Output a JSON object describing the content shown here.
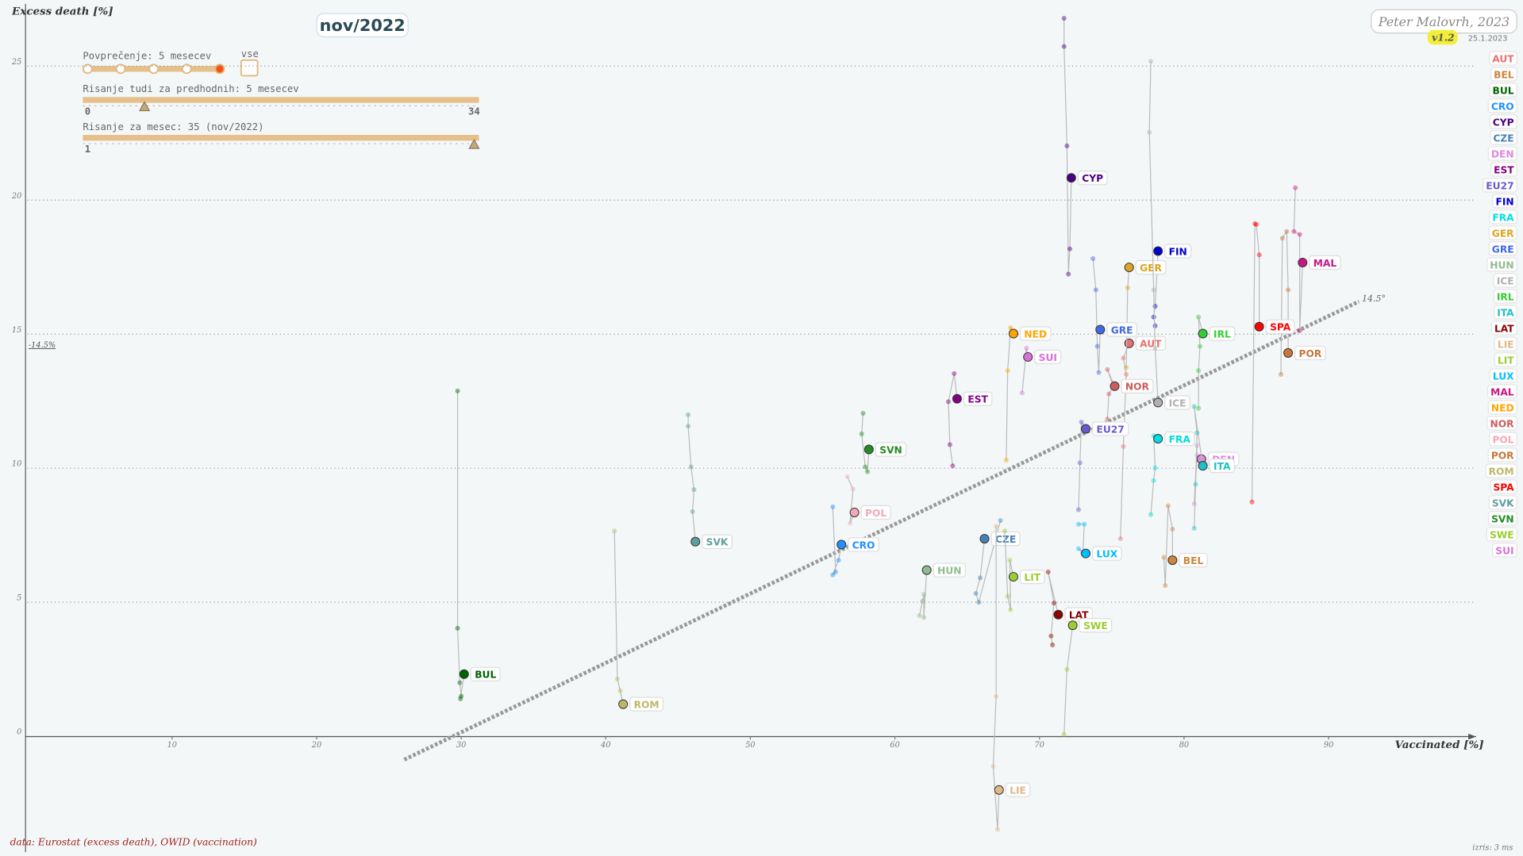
{
  "chart_data": {
    "type": "scatter",
    "title": "nov/2022",
    "x_label": "Vaccinated [%]",
    "y_label": "Excess death [%]",
    "xlim": [
      0,
      100.2
    ],
    "ylim": [
      -4.5,
      27.5
    ],
    "xticks": [
      10,
      20,
      30,
      40,
      50,
      60,
      70,
      80,
      90
    ],
    "yticks": [
      0,
      5,
      10,
      15,
      20,
      25
    ],
    "grid": true,
    "trend_line": {
      "x": [
        26.06,
        92.1
      ],
      "y": [
        -0.87,
        16.22
      ],
      "label": "14.5°",
      "left_label": "-14.5%"
    },
    "series": [
      {
        "name": "AUT",
        "color": "#e87070",
        "x": [
          75.6,
          75.8,
          76.0,
          75.8,
          76.2
        ],
        "y": [
          7.37,
          10.81,
          13.5,
          14.11,
          14.66
        ]
      },
      {
        "name": "BEL",
        "color": "#cd853f",
        "x": [
          78.6,
          78.7,
          78.9,
          79.2,
          79.2
        ],
        "y": [
          6.68,
          5.62,
          8.6,
          7.73,
          6.57
        ]
      },
      {
        "name": "BUL",
        "color": "#006400",
        "x": [
          29.75,
          29.75,
          29.9,
          30.0,
          29.95,
          30.2
        ],
        "y": [
          12.88,
          4.03,
          2.0,
          1.5,
          1.4,
          2.32
        ]
      },
      {
        "name": "CRO",
        "color": "#1e90ff",
        "x": [
          55.7,
          55.9,
          55.7,
          56.1,
          56.3
        ],
        "y": [
          8.56,
          6.13,
          6.02,
          6.57,
          7.15
        ]
      },
      {
        "name": "CYP",
        "color": "#4b0082",
        "x": [
          71.7,
          71.7,
          71.9,
          72.0,
          72.1,
          72.2
        ],
        "y": [
          26.78,
          25.73,
          22.02,
          17.24,
          18.18,
          20.83
        ]
      },
      {
        "name": "CZE",
        "color": "#4682b4",
        "x": [
          67.3,
          65.8,
          65.6,
          65.9,
          66.2
        ],
        "y": [
          8.05,
          5.0,
          5.33,
          5.91,
          7.37
        ]
      },
      {
        "name": "DEN",
        "color": "#dd88dd",
        "x": [
          80.9,
          80.7,
          80.9,
          81.2
        ],
        "y": [
          10.85,
          8.67,
          10.49,
          10.34
        ]
      },
      {
        "name": "EST",
        "color": "#800080",
        "x": [
          64.0,
          63.8,
          63.7,
          64.1,
          64.3
        ],
        "y": [
          10.09,
          10.88,
          12.48,
          13.53,
          12.59
        ]
      },
      {
        "name": "EU27",
        "color": "#6a5acd",
        "x": [
          72.7,
          72.8,
          72.9,
          73.2
        ],
        "y": [
          8.45,
          10.2,
          11.72,
          11.47
        ]
      },
      {
        "name": "FIN",
        "color": "#0000cd",
        "x": [
          78.0,
          77.9,
          78.0,
          78.2
        ],
        "y": [
          15.31,
          15.64,
          16.04,
          18.1
        ]
      },
      {
        "name": "FRA",
        "color": "#00dde0",
        "x": [
          77.7,
          77.9,
          78.0,
          77.9,
          78.2
        ],
        "y": [
          8.27,
          9.54,
          10.01,
          11.21,
          11.1
        ]
      },
      {
        "name": "GER",
        "color": "#daa520",
        "x": [
          76.0,
          76.1,
          76.2
        ],
        "y": [
          13.75,
          16.73,
          17.49
        ]
      },
      {
        "name": "GRE",
        "color": "#4169e1",
        "x": [
          73.7,
          73.9,
          74.0,
          74.1,
          74.2
        ],
        "y": [
          17.82,
          16.65,
          14.55,
          13.57,
          15.17
        ]
      },
      {
        "name": "HUN",
        "color": "#8fbc8f",
        "x": [
          61.7,
          61.9,
          62.0,
          62.0,
          62.2
        ],
        "y": [
          4.5,
          5.04,
          5.3,
          4.43,
          6.2
        ]
      },
      {
        "name": "ICE",
        "color": "#b0b0b0",
        "x": [
          77.7,
          77.6,
          77.9,
          78.0,
          78.2
        ],
        "y": [
          25.18,
          22.53,
          16.65,
          14.48,
          12.45
        ]
      },
      {
        "name": "IRL",
        "color": "#32cd32",
        "x": [
          81.0,
          81.0,
          81.1,
          81.0,
          81.3
        ],
        "y": [
          12.23,
          13.64,
          14.55,
          15.64,
          15.02
        ]
      },
      {
        "name": "ITA",
        "color": "#20c0c8",
        "x": [
          80.7,
          80.8,
          80.9,
          80.7,
          81.3
        ],
        "y": [
          7.76,
          9.4,
          11.32,
          12.3,
          10.09
        ]
      },
      {
        "name": "LAT",
        "color": "#8b0000",
        "x": [
          70.9,
          70.8,
          71.0,
          70.6,
          71.3
        ],
        "y": [
          3.41,
          3.74,
          4.97,
          6.13,
          4.54
        ]
      },
      {
        "name": "LIE",
        "color": "#deb887",
        "x": [
          67.0,
          67.0,
          66.8,
          67.1,
          67.2
        ],
        "y": [
          7.84,
          1.49,
          -1.12,
          -3.48,
          -2.0
        ]
      },
      {
        "name": "LIT",
        "color": "#9acd32",
        "x": [
          67.6,
          67.8,
          68.0,
          67.95,
          68.2
        ],
        "y": [
          7.66,
          5.22,
          4.72,
          6.57,
          5.95
        ]
      },
      {
        "name": "LUX",
        "color": "#00bfff",
        "x": [
          72.7,
          73.1,
          73.0,
          72.7,
          73.2
        ],
        "y": [
          7.91,
          7.91,
          6.82,
          7.0,
          6.82
        ]
      },
      {
        "name": "MAL",
        "color": "#c71585",
        "x": [
          87.7,
          87.6,
          88.0,
          88.0,
          88.2
        ],
        "y": [
          20.46,
          18.83,
          18.72,
          15.13,
          17.67
        ]
      },
      {
        "name": "NED",
        "color": "#ffa500",
        "x": [
          67.7,
          67.8,
          68.0,
          68.2
        ],
        "y": [
          10.3,
          13.64,
          15.24,
          15.02
        ]
      },
      {
        "name": "NOR",
        "color": "#cd5c5c",
        "x": [
          74.7,
          74.8,
          75.1,
          74.7,
          75.2
        ],
        "y": [
          11.83,
          12.77,
          13.06,
          13.68,
          13.06
        ]
      },
      {
        "name": "POL",
        "color": "#f4a8b8",
        "x": [
          56.7,
          57.1,
          56.9,
          57.2
        ],
        "y": [
          9.69,
          9.22,
          7.95,
          8.35
        ]
      },
      {
        "name": "POR",
        "color": "#c8763a",
        "x": [
          86.7,
          86.8,
          87.1,
          87.2,
          87.2
        ],
        "y": [
          13.5,
          18.58,
          18.83,
          16.65,
          14.3
        ]
      },
      {
        "name": "ROM",
        "color": "#bdb76b",
        "x": [
          40.6,
          40.8,
          41.0,
          41.2
        ],
        "y": [
          7.66,
          2.14,
          1.7,
          1.2
        ]
      },
      {
        "name": "SPA",
        "color": "#ff0000",
        "x": [
          84.7,
          84.9,
          85.0,
          85.2,
          85.2
        ],
        "y": [
          8.74,
          19.12,
          19.09,
          17.96,
          15.28
        ]
      },
      {
        "name": "SVK",
        "color": "#5f9ea0",
        "x": [
          45.7,
          45.7,
          45.9,
          46.1,
          46.0,
          46.2
        ],
        "y": [
          12.0,
          11.57,
          10.05,
          9.2,
          8.38,
          7.26
        ]
      },
      {
        "name": "SVN",
        "color": "#228b22",
        "x": [
          57.8,
          57.7,
          57.95,
          58.1,
          58.2
        ],
        "y": [
          12.05,
          11.28,
          10.05,
          9.87,
          10.7
        ]
      },
      {
        "name": "SWE",
        "color": "#9acd32",
        "x": [
          71.7,
          71.9,
          72.3
        ],
        "y": [
          0.07,
          2.5,
          4.14
        ]
      },
      {
        "name": "SUI",
        "color": "#da70d6",
        "x": [
          68.8,
          69.1,
          69.2
        ],
        "y": [
          12.81,
          14.48,
          14.15
        ]
      }
    ]
  },
  "controls": {
    "averaging": {
      "label": "Povprečenje: 5 mesecev",
      "steps": 5,
      "selected": 5,
      "all_label": "vse"
    },
    "history": {
      "label": "Risanje tudi za predhodnih: 5 mesecev",
      "lim": [
        0,
        34
      ],
      "value": 5
    },
    "month": {
      "label": "Risanje za mesec: 35 (nov/2022)",
      "lim": [
        1,
        35
      ],
      "min_label": 1,
      "value": 35
    }
  },
  "author": "Peter Malovrh, 2023",
  "version": "v1.2",
  "date": "25.1.2023",
  "source": "data: Eurostat (excess death), OWID (vaccination)",
  "render_time": "izris: 3 ms"
}
